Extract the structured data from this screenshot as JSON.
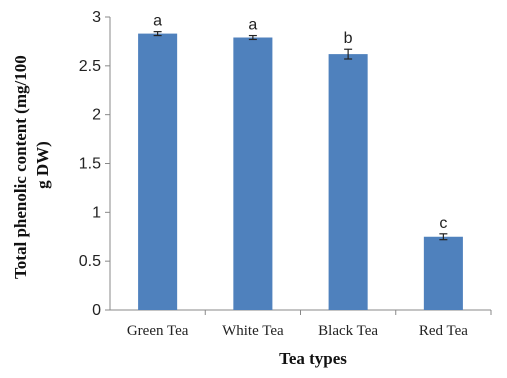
{
  "chart_data": {
    "type": "bar",
    "categories": [
      "Green Tea",
      "White Tea",
      "Black Tea",
      "Red Tea"
    ],
    "values": [
      2.83,
      2.79,
      2.62,
      0.75
    ],
    "errors": [
      0.02,
      0.02,
      0.05,
      0.03
    ],
    "significance_letters": [
      "a",
      "a",
      "b",
      "c"
    ],
    "xlabel": "Tea types",
    "ylabel_lines": [
      "Total phenolic content (mg/100",
      "g DW)"
    ],
    "ylim": [
      0,
      3
    ],
    "yticks": [
      "0",
      "0.5",
      "1",
      "1.5",
      "2",
      "2.5",
      "3"
    ],
    "bar_color": "#4F81BD",
    "grid": false,
    "legend": "none"
  }
}
